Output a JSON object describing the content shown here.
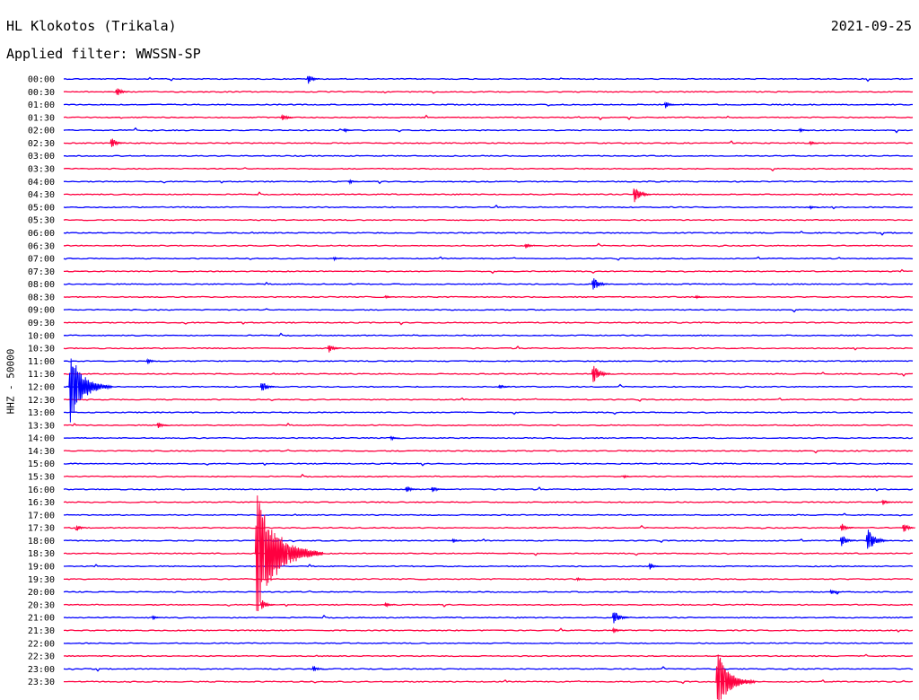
{
  "header": {
    "station": "HL Klokotos (Trikala)",
    "date": "2021-09-25",
    "filter": "Applied filter: WWSSN-SP"
  },
  "chart_data": {
    "type": "line",
    "ylabel": "HHZ - 50000",
    "colors": [
      "#0000ff",
      "#ff0040"
    ],
    "rows": [
      "00:00",
      "00:30",
      "01:00",
      "01:30",
      "02:00",
      "02:30",
      "03:00",
      "03:30",
      "04:00",
      "04:30",
      "05:00",
      "05:30",
      "06:00",
      "06:30",
      "07:00",
      "07:30",
      "08:00",
      "08:30",
      "09:00",
      "09:30",
      "10:00",
      "10:30",
      "11:00",
      "11:30",
      "12:00",
      "12:30",
      "13:00",
      "13:30",
      "14:00",
      "14:30",
      "15:00",
      "15:30",
      "16:00",
      "16:30",
      "17:00",
      "17:30",
      "18:00",
      "18:30",
      "19:00",
      "19:30",
      "20:00",
      "20:30",
      "21:00",
      "21:30",
      "22:00",
      "22:30",
      "23:00",
      "23:30"
    ],
    "events": [
      {
        "row": 0,
        "minute": 23.5,
        "amp": 8
      },
      {
        "row": 1,
        "minute": 5.0,
        "amp": 8
      },
      {
        "row": 2,
        "minute": 58.0,
        "amp": 6
      },
      {
        "row": 3,
        "minute": 21.0,
        "amp": 7
      },
      {
        "row": 4,
        "minute": 27.0,
        "amp": 4
      },
      {
        "row": 4,
        "minute": 71.0,
        "amp": 4
      },
      {
        "row": 5,
        "minute": 4.5,
        "amp": 9
      },
      {
        "row": 5,
        "minute": 72.0,
        "amp": 4
      },
      {
        "row": 8,
        "minute": 27.5,
        "amp": 4
      },
      {
        "row": 9,
        "minute": 55.0,
        "amp": 14
      },
      {
        "row": 10,
        "minute": 72.0,
        "amp": 3
      },
      {
        "row": 13,
        "minute": 44.5,
        "amp": 5
      },
      {
        "row": 14,
        "minute": 26.0,
        "amp": 3
      },
      {
        "row": 16,
        "minute": 51.0,
        "amp": 12
      },
      {
        "row": 17,
        "minute": 31.0,
        "amp": 3
      },
      {
        "row": 17,
        "minute": 61.0,
        "amp": 3
      },
      {
        "row": 21,
        "minute": 25.5,
        "amp": 8
      },
      {
        "row": 22,
        "minute": 8.0,
        "amp": 5
      },
      {
        "row": 23,
        "minute": 51.0,
        "amp": 15
      },
      {
        "row": 24,
        "minute": 0.5,
        "amp": 45
      },
      {
        "row": 24,
        "minute": 19.0,
        "amp": 10
      },
      {
        "row": 24,
        "minute": 42.0,
        "amp": 5
      },
      {
        "row": 27,
        "minute": 9.0,
        "amp": 6
      },
      {
        "row": 28,
        "minute": 31.5,
        "amp": 4
      },
      {
        "row": 31,
        "minute": 54.0,
        "amp": 3
      },
      {
        "row": 32,
        "minute": 33.0,
        "amp": 7
      },
      {
        "row": 32,
        "minute": 35.5,
        "amp": 6
      },
      {
        "row": 33,
        "minute": 79.0,
        "amp": 6
      },
      {
        "row": 35,
        "minute": 1.2,
        "amp": 5
      },
      {
        "row": 35,
        "minute": 75.0,
        "amp": 8
      },
      {
        "row": 35,
        "minute": 81.0,
        "amp": 8
      },
      {
        "row": 36,
        "minute": 37.5,
        "amp": 4
      },
      {
        "row": 36,
        "minute": 75.0,
        "amp": 10
      },
      {
        "row": 36,
        "minute": 77.5,
        "amp": 18
      },
      {
        "row": 37,
        "minute": 18.5,
        "amp": 75
      },
      {
        "row": 38,
        "minute": 56.5,
        "amp": 6
      },
      {
        "row": 39,
        "minute": 49.5,
        "amp": 3
      },
      {
        "row": 40,
        "minute": 74.0,
        "amp": 5
      },
      {
        "row": 41,
        "minute": 19.0,
        "amp": 9
      },
      {
        "row": 41,
        "minute": 31.0,
        "amp": 5
      },
      {
        "row": 42,
        "minute": 8.5,
        "amp": 4
      },
      {
        "row": 42,
        "minute": 53.0,
        "amp": 12
      },
      {
        "row": 43,
        "minute": 53.0,
        "amp": 5
      },
      {
        "row": 46,
        "minute": 24.0,
        "amp": 6
      },
      {
        "row": 47,
        "minute": 63.0,
        "amp": 40
      }
    ]
  }
}
